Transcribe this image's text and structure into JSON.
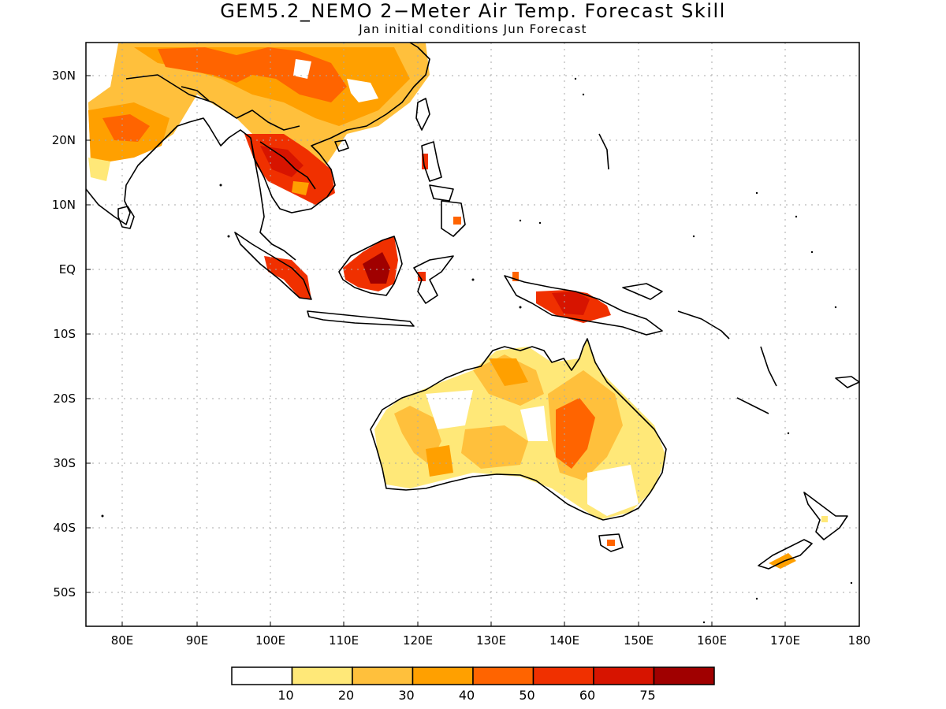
{
  "title": "GEM5.2_NEMO 2−Meter Air Temp. Forecast Skill",
  "subtitle": "Jan initial conditions  Jun Forecast",
  "map": {
    "lon_range": [
      75,
      180
    ],
    "lat_range": [
      -55,
      35
    ],
    "grid": true,
    "x_ticks": [
      "80E",
      "90E",
      "100E",
      "110E",
      "120E",
      "130E",
      "140E",
      "150E",
      "160E",
      "170E",
      "180"
    ],
    "y_ticks": [
      "30N",
      "20N",
      "10N",
      "EQ",
      "10S",
      "20S",
      "30S",
      "40S",
      "50S"
    ]
  },
  "colorbar": {
    "colors": [
      "#ffffff",
      "#ffe878",
      "#ffc03c",
      "#ffa000",
      "#ff6400",
      "#f03000",
      "#d71400",
      "#a00000"
    ],
    "labels": [
      "10",
      "20",
      "30",
      "40",
      "50",
      "60",
      "75"
    ]
  }
}
